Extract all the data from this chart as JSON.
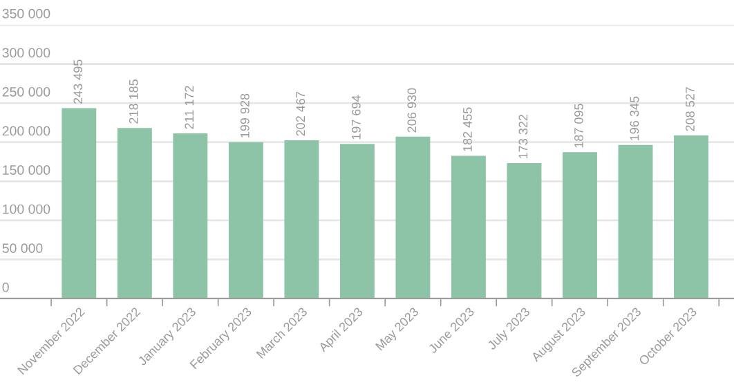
{
  "chart_data": {
    "type": "bar",
    "categories": [
      "November 2022",
      "December 2022",
      "January 2023",
      "February 2023",
      "March 2023",
      "April 2023",
      "May 2023",
      "June 2023",
      "July 2023",
      "August 2023",
      "September 2023",
      "October 2023"
    ],
    "values": [
      243495,
      218185,
      211172,
      199928,
      202467,
      197694,
      206930,
      182455,
      173322,
      187095,
      196345,
      208527
    ],
    "value_labels": [
      "243 495",
      "218 185",
      "211 172",
      "199 928",
      "202 467",
      "197 694",
      "206 930",
      "182 455",
      "173 322",
      "187 095",
      "196 345",
      "208 527"
    ],
    "color": "#8dc3a7",
    "ylim": [
      0,
      350000
    ],
    "yticks": [
      {
        "value": 0,
        "label": "0"
      },
      {
        "value": 50000,
        "label": "50 000"
      },
      {
        "value": 100000,
        "label": "100 000"
      },
      {
        "value": 150000,
        "label": "150 000"
      },
      {
        "value": 200000,
        "label": "200 000"
      },
      {
        "value": 250000,
        "label": "250 000"
      },
      {
        "value": 300000,
        "label": "300 000"
      },
      {
        "value": 350000,
        "label": "350 000"
      }
    ],
    "grid": "y"
  }
}
